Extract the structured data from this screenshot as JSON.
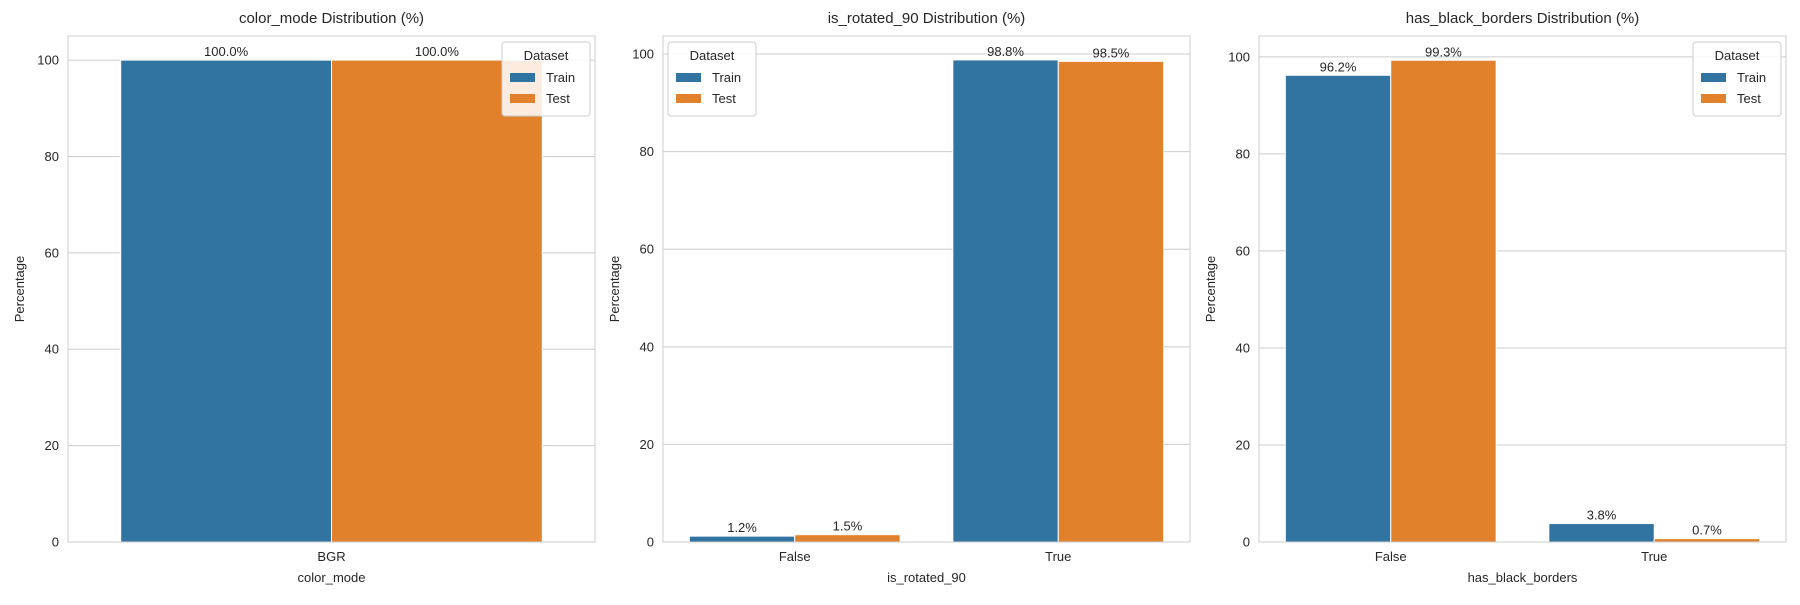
{
  "colors": {
    "train": "#3274a1",
    "test": "#e1812c",
    "grid": "#cccccc",
    "spine": "#cccccc"
  },
  "legend": {
    "title": "Dataset",
    "entries": [
      "Train",
      "Test"
    ]
  },
  "chart_data": [
    {
      "type": "bar",
      "title": "color_mode Distribution (%)",
      "xlabel": "color_mode",
      "ylabel": "Percentage",
      "categories": [
        "BGR"
      ],
      "series": [
        {
          "name": "Train",
          "values": [
            100.0
          ],
          "labels": [
            "100.0%"
          ]
        },
        {
          "name": "Test",
          "values": [
            100.0
          ],
          "labels": [
            "100.0%"
          ]
        }
      ],
      "ylim": [
        0,
        105
      ],
      "yticks": [
        0,
        20,
        40,
        60,
        80,
        100
      ],
      "grid": true,
      "legend_placement": "top-right"
    },
    {
      "type": "bar",
      "title": "is_rotated_90 Distribution (%)",
      "xlabel": "is_rotated_90",
      "ylabel": "Percentage",
      "categories": [
        "False",
        "True"
      ],
      "series": [
        {
          "name": "Train",
          "values": [
            1.2,
            98.8
          ],
          "labels": [
            "1.2%",
            "98.8%"
          ]
        },
        {
          "name": "Test",
          "values": [
            1.5,
            98.5
          ],
          "labels": [
            "1.5%",
            "98.5%"
          ]
        }
      ],
      "ylim": [
        0,
        103.7
      ],
      "yticks": [
        0,
        20,
        40,
        60,
        80,
        100
      ],
      "grid": true,
      "legend_placement": "top-left"
    },
    {
      "type": "bar",
      "title": "has_black_borders Distribution (%)",
      "xlabel": "has_black_borders",
      "ylabel": "Percentage",
      "categories": [
        "False",
        "True"
      ],
      "series": [
        {
          "name": "Train",
          "values": [
            96.2,
            3.8
          ],
          "labels": [
            "96.2%",
            "3.8%"
          ]
        },
        {
          "name": "Test",
          "values": [
            99.3,
            0.7
          ],
          "labels": [
            "99.3%",
            "0.7%"
          ]
        }
      ],
      "ylim": [
        0,
        104.3
      ],
      "yticks": [
        0,
        20,
        40,
        60,
        80,
        100
      ],
      "grid": true,
      "legend_placement": "top-right"
    }
  ]
}
